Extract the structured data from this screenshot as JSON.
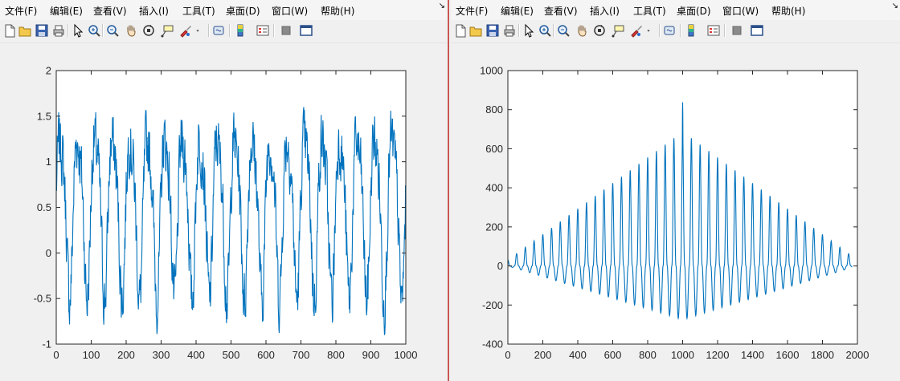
{
  "menu": {
    "items": [
      "文件(F)",
      "编辑(E)",
      "查看(V)",
      "插入(I)",
      "工具(T)",
      "桌面(D)",
      "窗口(W)",
      "帮助(H)"
    ],
    "dock_arrow": "↘"
  },
  "toolbar": {
    "icons": [
      "new-figure-icon",
      "open-file-icon",
      "save-icon",
      "print-icon",
      "select-pointer-icon",
      "zoom-in-icon",
      "zoom-out-icon",
      "pan-hand-icon",
      "rotate-3d-icon",
      "data-cursor-icon",
      "brush-icon",
      "dropdown-arrow-icon",
      "link-plot-icon",
      "insert-colorbar-icon",
      "insert-legend-icon",
      "hide-plot-tools-icon",
      "show-plot-tools-icon"
    ]
  },
  "colors": {
    "line": "#0072bd",
    "axes": "#262626",
    "plot_bg": "#ffffff",
    "window_bg": "#f0f0f0"
  },
  "chart_data": [
    {
      "type": "line",
      "title": "",
      "xlabel": "",
      "ylabel": "",
      "xlim": [
        0,
        1000
      ],
      "ylim": [
        -1,
        2
      ],
      "xticks": [
        "0",
        "100",
        "200",
        "300",
        "400",
        "500",
        "600",
        "700",
        "800",
        "900",
        "1000"
      ],
      "yticks": [
        "-1",
        "-0.5",
        "0",
        "0.5",
        "1",
        "1.5",
        "2"
      ],
      "grid": false,
      "series": [
        {
          "kind": "periodic_noisy",
          "period": 50,
          "baseline": 0.5,
          "amplitude": 0.85,
          "noise": 0.3,
          "x_start": 0,
          "x_end": 1000,
          "ymin": -1,
          "ymax": 1.95
        }
      ]
    },
    {
      "type": "line",
      "title": "",
      "xlabel": "",
      "ylabel": "",
      "xlim": [
        0,
        2000
      ],
      "ylim": [
        -400,
        1000
      ],
      "xticks": [
        "0",
        "200",
        "400",
        "600",
        "800",
        "1000",
        "1200",
        "1400",
        "1600",
        "1800",
        "2000"
      ],
      "yticks": [
        "-400",
        "-200",
        "0",
        "200",
        "400",
        "600",
        "800",
        "1000"
      ],
      "grid": false,
      "series": [
        {
          "kind": "autocorrelation",
          "period": 50,
          "center": 1000,
          "x_start": 0,
          "x_end": 1970,
          "peak_value": 838,
          "peak_max_neighbor": 710,
          "trough_min": -275
        }
      ]
    }
  ]
}
